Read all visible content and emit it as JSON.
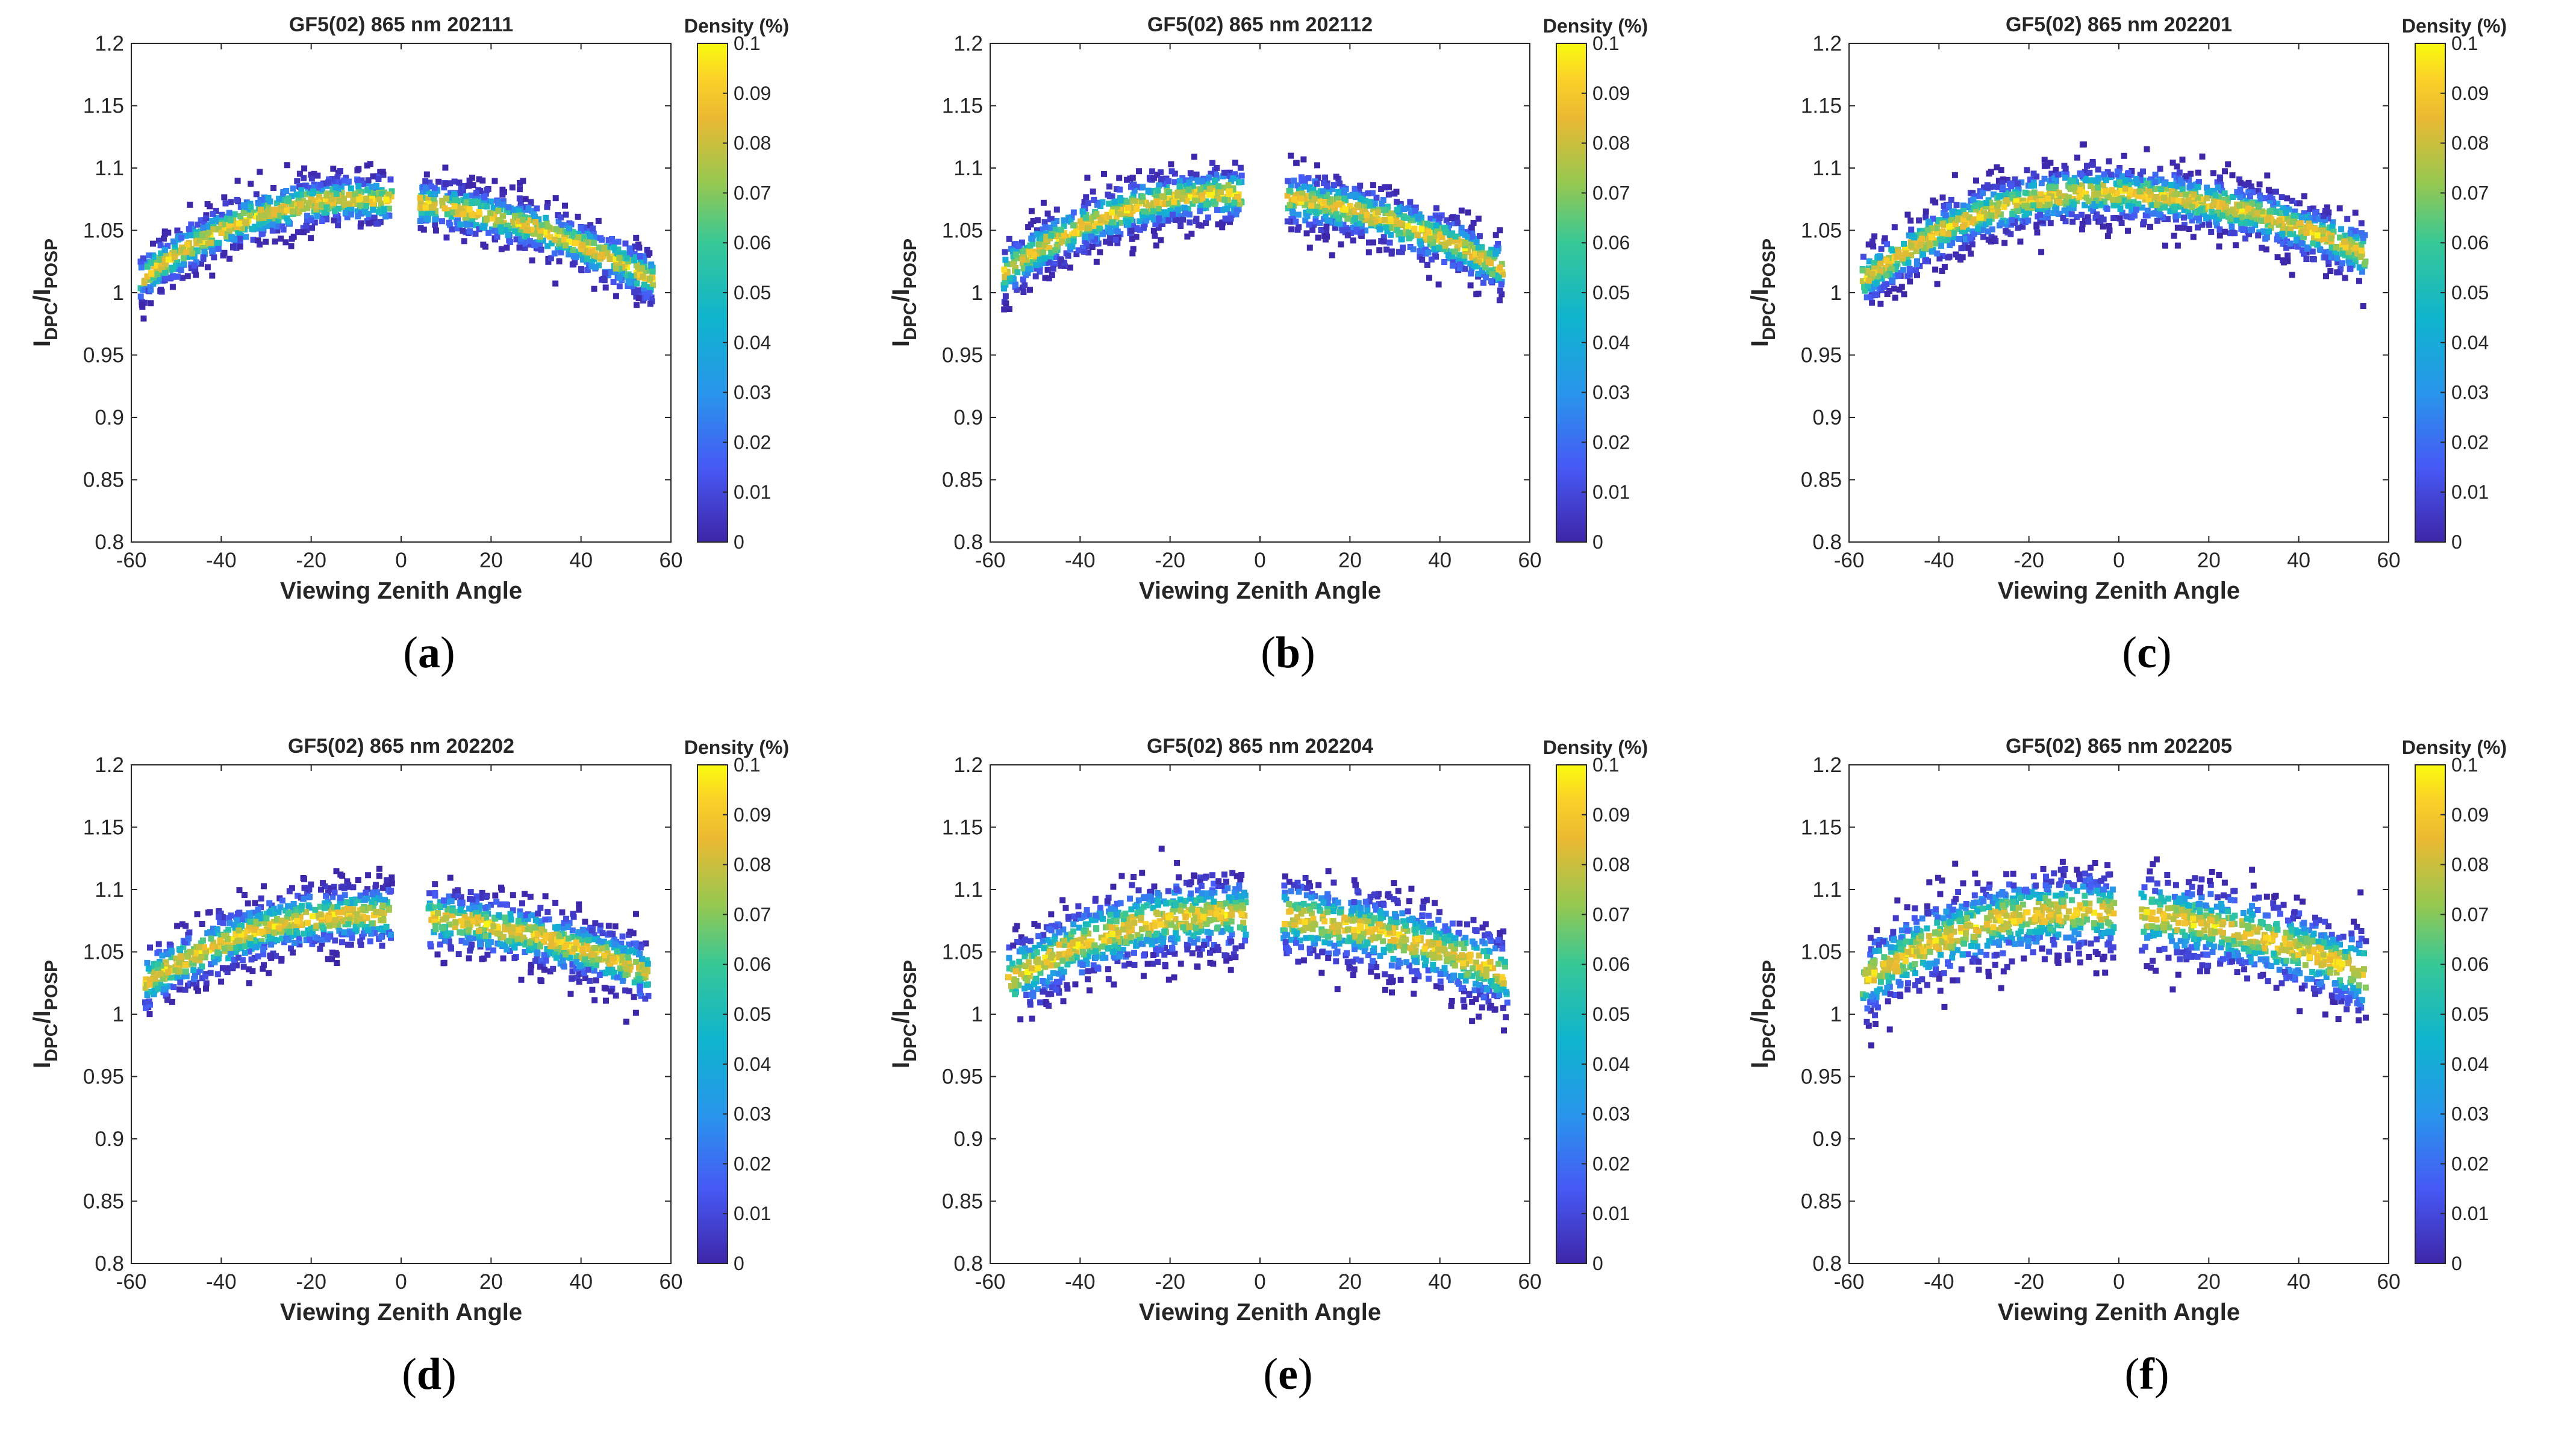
{
  "chart_data": [
    {
      "type": "scatter",
      "panel_label": "a",
      "title": "GF5(02) 865 nm 202111",
      "xlabel": "Viewing Zenith Angle",
      "ylabel_main": "I",
      "ylabel_sub1": "DPC",
      "ylabel_mid": "/I",
      "ylabel_sub2": "POSP",
      "xlim": [
        -60,
        60
      ],
      "ylim": [
        0.8,
        1.2
      ],
      "x_ticks": [
        "-60",
        "-40",
        "-20",
        "0",
        "20",
        "40",
        "60"
      ],
      "y_ticks": [
        "0.8",
        "0.85",
        "0.9",
        "0.95",
        "1",
        "1.05",
        "1.1",
        "1.15",
        "1.2"
      ],
      "colorbar": {
        "label": "Density (%)",
        "range": [
          0,
          0.1
        ],
        "ticks": [
          "0",
          "0.01",
          "0.02",
          "0.03",
          "0.04",
          "0.05",
          "0.06",
          "0.07",
          "0.08",
          "0.09",
          "0.1"
        ]
      },
      "curve": {
        "vertex_x": -10,
        "peak": 1.075,
        "curvature_left": 2.82e-05,
        "curvature_right": 1.48e-05
      },
      "x_range": [
        -58,
        56
      ],
      "gap": [
        -2,
        4
      ],
      "spread": 0.009,
      "seed": 11
    },
    {
      "type": "scatter",
      "panel_label": "b",
      "title": "GF5(02) 865 nm 202112",
      "xlabel": "Viewing Zenith Angle",
      "ylabel_main": "I",
      "ylabel_sub1": "DPC",
      "ylabel_mid": "/I",
      "ylabel_sub2": "POSP",
      "xlim": [
        -60,
        60
      ],
      "ylim": [
        0.8,
        1.2
      ],
      "x_ticks": [
        "-60",
        "-40",
        "-20",
        "0",
        "20",
        "40",
        "60"
      ],
      "y_ticks": [
        "0.8",
        "0.85",
        "0.9",
        "0.95",
        "1",
        "1.05",
        "1.1",
        "1.15",
        "1.2"
      ],
      "colorbar": {
        "label": "Density (%)",
        "range": [
          0,
          0.1
        ],
        "ticks": [
          "0",
          "0.01",
          "0.02",
          "0.03",
          "0.04",
          "0.05",
          "0.06",
          "0.07",
          "0.08",
          "0.09",
          "0.1"
        ]
      },
      "curve": {
        "vertex_x": -8,
        "peak": 1.079,
        "curvature_left": 2.64e-05,
        "curvature_right": 1.55e-05
      },
      "x_range": [
        -57,
        54
      ],
      "gap": [
        -4,
        6
      ],
      "spread": 0.01,
      "seed": 23
    },
    {
      "type": "scatter",
      "panel_label": "c",
      "title": "GF5(02) 865 nm 202201",
      "xlabel": "Viewing Zenith Angle",
      "ylabel_main": "I",
      "ylabel_sub1": "DPC",
      "ylabel_mid": "/I",
      "ylabel_sub2": "POSP",
      "xlim": [
        -60,
        60
      ],
      "ylim": [
        0.8,
        1.2
      ],
      "x_ticks": [
        "-60",
        "-40",
        "-20",
        "0",
        "20",
        "40",
        "60"
      ],
      "y_ticks": [
        "0.8",
        "0.85",
        "0.9",
        "0.95",
        "1",
        "1.05",
        "1.1",
        "1.15",
        "1.2"
      ],
      "colorbar": {
        "label": "Density (%)",
        "range": [
          0,
          0.1
        ],
        "ticks": [
          "0",
          "0.01",
          "0.02",
          "0.03",
          "0.04",
          "0.05",
          "0.06",
          "0.07",
          "0.08",
          "0.09",
          "0.1"
        ]
      },
      "curve": {
        "vertex_x": -5,
        "peak": 1.08,
        "curvature_left": 2.62e-05,
        "curvature_right": 1.38e-05
      },
      "x_range": [
        -57,
        55
      ],
      "gap": [
        0,
        0
      ],
      "spread": 0.01,
      "seed": 37
    },
    {
      "type": "scatter",
      "panel_label": "d",
      "title": "GF5(02) 865 nm 202202",
      "xlabel": "Viewing Zenith Angle",
      "ylabel_main": "I",
      "ylabel_sub1": "DPC",
      "ylabel_mid": "/I",
      "ylabel_sub2": "POSP",
      "xlim": [
        -60,
        60
      ],
      "ylim": [
        0.8,
        1.2
      ],
      "x_ticks": [
        "-60",
        "-40",
        "-20",
        "0",
        "20",
        "40",
        "60"
      ],
      "y_ticks": [
        "0.8",
        "0.85",
        "0.9",
        "0.95",
        "1",
        "1.05",
        "1.1",
        "1.15",
        "1.2"
      ],
      "colorbar": {
        "label": "Density (%)",
        "range": [
          0,
          0.1
        ],
        "ticks": [
          "0",
          "0.01",
          "0.02",
          "0.03",
          "0.04",
          "0.05",
          "0.06",
          "0.07",
          "0.08",
          "0.09",
          "0.1"
        ]
      },
      "curve": {
        "vertex_x": -8,
        "peak": 1.08,
        "curvature_left": 2.3e-05,
        "curvature_right": 1.2e-05
      },
      "x_range": [
        -57,
        55
      ],
      "gap": [
        -2,
        6
      ],
      "spread": 0.011,
      "seed": 41
    },
    {
      "type": "scatter",
      "panel_label": "e",
      "title": "GF5(02) 865 nm 202204",
      "xlabel": "Viewing Zenith Angle",
      "ylabel_main": "I",
      "ylabel_sub1": "DPC",
      "ylabel_mid": "/I",
      "ylabel_sub2": "POSP",
      "xlim": [
        -60,
        60
      ],
      "ylim": [
        0.8,
        1.2
      ],
      "x_ticks": [
        "-60",
        "-40",
        "-20",
        "0",
        "20",
        "40",
        "60"
      ],
      "y_ticks": [
        "0.8",
        "0.85",
        "0.9",
        "0.95",
        "1",
        "1.05",
        "1.1",
        "1.15",
        "1.2"
      ],
      "colorbar": {
        "label": "Density (%)",
        "range": [
          0,
          0.1
        ],
        "ticks": [
          "0",
          "0.01",
          "0.02",
          "0.03",
          "0.04",
          "0.05",
          "0.06",
          "0.07",
          "0.08",
          "0.09",
          "0.1"
        ]
      },
      "curve": {
        "vertex_x": -8,
        "peak": 1.08,
        "curvature_left": 2.35e-05,
        "curvature_right": 1.25e-05
      },
      "x_range": [
        -56,
        55
      ],
      "gap": [
        -3,
        5
      ],
      "spread": 0.014,
      "seed": 53
    },
    {
      "type": "scatter",
      "panel_label": "f",
      "title": "GF5(02) 865 nm 202205",
      "xlabel": "Viewing Zenith Angle",
      "ylabel_main": "I",
      "ylabel_sub1": "DPC",
      "ylabel_mid": "/I",
      "ylabel_sub2": "POSP",
      "xlim": [
        -60,
        60
      ],
      "ylim": [
        0.8,
        1.2
      ],
      "x_ticks": [
        "-60",
        "-40",
        "-20",
        "0",
        "20",
        "40",
        "60"
      ],
      "y_ticks": [
        "0.8",
        "0.85",
        "0.9",
        "0.95",
        "1",
        "1.05",
        "1.1",
        "1.15",
        "1.2"
      ],
      "colorbar": {
        "label": "Density (%)",
        "range": [
          0,
          0.1
        ],
        "ticks": [
          "0",
          "0.01",
          "0.02",
          "0.03",
          "0.04",
          "0.05",
          "0.06",
          "0.07",
          "0.08",
          "0.09",
          "0.1"
        ]
      },
      "curve": {
        "vertex_x": -10,
        "peak": 1.082,
        "curvature_left": 2.55e-05,
        "curvature_right": 1.2e-05
      },
      "x_range": [
        -57,
        55
      ],
      "gap": [
        -1,
        5
      ],
      "spread": 0.015,
      "seed": 67
    }
  ],
  "colors": {
    "marker_low": "#3e26a8",
    "marker_mid": "#1fb6c1",
    "marker_high": "#f9fb0e",
    "axis": "#262626"
  },
  "captions": {
    "a": "a",
    "b": "b",
    "c": "c",
    "d": "d",
    "e": "e",
    "f": "f"
  }
}
